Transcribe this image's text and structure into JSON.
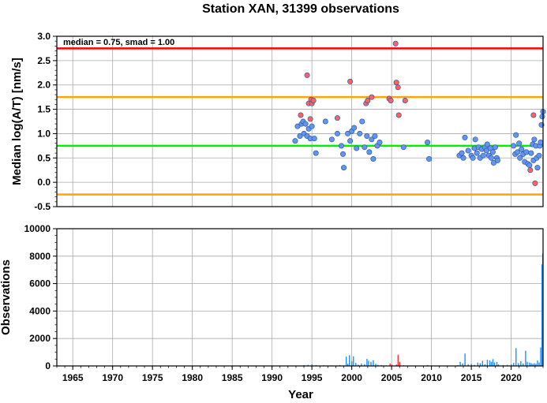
{
  "chart_data": [
    {
      "type": "scatter",
      "title": "Station XAN, 31399 observations",
      "ylabel": "Median log(A/T) [nm/s]",
      "annotation": "median = 0.75, smad = 1.00",
      "xlim": [
        1963,
        2024
      ],
      "ylim": [
        -0.5,
        3.0
      ],
      "yticks": [
        "-0.5",
        "0.0",
        "0.5",
        "1.0",
        "1.5",
        "2.0",
        "2.5",
        "3.0"
      ],
      "ref_lines": [
        {
          "y": 2.75,
          "color": "#ff0000"
        },
        {
          "y": 1.75,
          "color": "#ffa500"
        },
        {
          "y": 0.75,
          "color": "#00ee00"
        },
        {
          "y": -0.25,
          "color": "#ffa500"
        }
      ],
      "grid": true,
      "series": [
        {
          "color": "#6495ed",
          "points": [
            [
              1992.9,
              0.85
            ],
            [
              1993.2,
              1.15
            ],
            [
              1993.5,
              0.95
            ],
            [
              1993.7,
              1.2
            ],
            [
              1993.9,
              1.25
            ],
            [
              1994.0,
              1.0
            ],
            [
              1994.2,
              1.2
            ],
            [
              1994.4,
              0.95
            ],
            [
              1994.6,
              1.1
            ],
            [
              1994.8,
              0.9
            ],
            [
              1995.0,
              1.15
            ],
            [
              1995.3,
              0.9
            ],
            [
              1995.5,
              0.6
            ],
            [
              1996.7,
              1.25
            ],
            [
              1997.5,
              0.88
            ],
            [
              1998.2,
              1.0
            ],
            [
              1998.7,
              0.75
            ],
            [
              1998.9,
              0.58
            ],
            [
              1999.0,
              0.3
            ],
            [
              1999.5,
              1.0
            ],
            [
              1999.8,
              0.85
            ],
            [
              2000.0,
              1.05
            ],
            [
              2000.3,
              1.12
            ],
            [
              2000.6,
              0.7
            ],
            [
              2001.0,
              1.0
            ],
            [
              2001.3,
              1.25
            ],
            [
              2001.6,
              0.72
            ],
            [
              2001.9,
              0.95
            ],
            [
              2002.2,
              0.62
            ],
            [
              2002.5,
              0.88
            ],
            [
              2002.7,
              0.48
            ],
            [
              2002.9,
              0.95
            ],
            [
              2003.2,
              0.75
            ],
            [
              2003.5,
              0.82
            ],
            [
              2006.5,
              0.72
            ],
            [
              2009.5,
              0.82
            ],
            [
              2009.7,
              0.48
            ],
            [
              2013.5,
              0.55
            ],
            [
              2013.8,
              0.6
            ],
            [
              2014.0,
              0.5
            ],
            [
              2014.2,
              0.92
            ],
            [
              2014.6,
              0.65
            ],
            [
              2015.0,
              0.55
            ],
            [
              2015.2,
              0.5
            ],
            [
              2015.4,
              0.7
            ],
            [
              2015.5,
              0.88
            ],
            [
              2015.7,
              0.6
            ],
            [
              2015.9,
              0.72
            ],
            [
              2016.1,
              0.5
            ],
            [
              2016.3,
              0.68
            ],
            [
              2016.5,
              0.55
            ],
            [
              2016.7,
              0.72
            ],
            [
              2016.9,
              0.65
            ],
            [
              2017.0,
              0.78
            ],
            [
              2017.2,
              0.55
            ],
            [
              2017.4,
              0.7
            ],
            [
              2017.5,
              0.5
            ],
            [
              2017.7,
              0.62
            ],
            [
              2017.8,
              0.4
            ],
            [
              2018.0,
              0.72
            ],
            [
              2018.2,
              0.5
            ],
            [
              2018.3,
              0.45
            ],
            [
              2020.3,
              0.75
            ],
            [
              2020.5,
              0.58
            ],
            [
              2020.6,
              0.97
            ],
            [
              2020.8,
              0.62
            ],
            [
              2021.0,
              0.8
            ],
            [
              2021.1,
              0.5
            ],
            [
              2021.3,
              0.68
            ],
            [
              2021.5,
              0.58
            ],
            [
              2021.7,
              0.42
            ],
            [
              2021.9,
              0.62
            ],
            [
              2022.1,
              0.38
            ],
            [
              2022.3,
              0.35
            ],
            [
              2022.5,
              0.6
            ],
            [
              2022.7,
              0.78
            ],
            [
              2022.8,
              0.45
            ],
            [
              2022.9,
              0.88
            ],
            [
              2023.1,
              0.75
            ],
            [
              2023.2,
              0.5
            ],
            [
              2023.3,
              0.3
            ],
            [
              2023.5,
              0.55
            ],
            [
              2023.6,
              0.75
            ],
            [
              2023.7,
              0.82
            ],
            [
              2023.8,
              1.18
            ],
            [
              2023.9,
              1.35
            ],
            [
              2024.0,
              1.45
            ]
          ]
        },
        {
          "color": "#ff6060",
          "points": [
            [
              1993.6,
              1.38
            ],
            [
              1994.4,
              2.2
            ],
            [
              1994.6,
              1.62
            ],
            [
              1994.8,
              1.3
            ],
            [
              1994.9,
              1.7
            ],
            [
              1995.0,
              1.62
            ],
            [
              1995.2,
              1.68
            ],
            [
              1998.2,
              1.32
            ],
            [
              1999.8,
              2.07
            ],
            [
              2001.8,
              1.62
            ],
            [
              2002.0,
              1.68
            ],
            [
              2002.5,
              1.75
            ],
            [
              2004.7,
              1.72
            ],
            [
              2004.9,
              1.68
            ],
            [
              2005.5,
              2.85
            ],
            [
              2005.6,
              2.05
            ],
            [
              2005.8,
              1.95
            ],
            [
              2005.9,
              1.38
            ],
            [
              2006.7,
              1.68
            ],
            [
              2022.4,
              0.25
            ],
            [
              2022.8,
              1.38
            ],
            [
              2023.0,
              -0.02
            ]
          ]
        }
      ]
    },
    {
      "type": "bar",
      "xlabel": "Year",
      "ylabel": "Observations",
      "xlim": [
        1963,
        2024
      ],
      "ylim": [
        0,
        10000
      ],
      "yticks": [
        "0",
        "2000",
        "4000",
        "6000",
        "8000",
        "10000"
      ],
      "xticks": [
        "1965",
        "1970",
        "1975",
        "1980",
        "1985",
        "1990",
        "1995",
        "2000",
        "2005",
        "2010",
        "2015",
        "2020"
      ],
      "grid": true,
      "series": [
        {
          "color": "#1e90ff",
          "bars": [
            [
              1993.0,
              30
            ],
            [
              1994.0,
              60
            ],
            [
              1994.5,
              80
            ],
            [
              1995.0,
              120
            ],
            [
              1995.5,
              60
            ],
            [
              1996.5,
              50
            ],
            [
              1997.5,
              40
            ],
            [
              1998.5,
              60
            ],
            [
              1999.0,
              40
            ],
            [
              1999.3,
              680
            ],
            [
              1999.5,
              150
            ],
            [
              1999.7,
              780
            ],
            [
              2000.0,
              350
            ],
            [
              2000.2,
              700
            ],
            [
              2000.5,
              220
            ],
            [
              2000.8,
              90
            ],
            [
              2001.2,
              180
            ],
            [
              2001.6,
              130
            ],
            [
              2001.9,
              520
            ],
            [
              2002.1,
              380
            ],
            [
              2002.4,
              300
            ],
            [
              2002.7,
              420
            ],
            [
              2003.0,
              150
            ],
            [
              2003.3,
              80
            ],
            [
              2003.7,
              60
            ],
            [
              2004.3,
              40
            ],
            [
              2006.5,
              50
            ],
            [
              2007.0,
              30
            ],
            [
              2009.5,
              60
            ],
            [
              2010.0,
              40
            ],
            [
              2013.3,
              60
            ],
            [
              2013.6,
              300
            ],
            [
              2013.9,
              180
            ],
            [
              2014.2,
              900
            ],
            [
              2014.6,
              120
            ],
            [
              2015.0,
              150
            ],
            [
              2015.4,
              80
            ],
            [
              2015.8,
              250
            ],
            [
              2016.1,
              200
            ],
            [
              2016.4,
              380
            ],
            [
              2016.7,
              130
            ],
            [
              2017.0,
              450
            ],
            [
              2017.3,
              400
            ],
            [
              2017.5,
              300
            ],
            [
              2017.7,
              500
            ],
            [
              2017.9,
              250
            ],
            [
              2018.2,
              300
            ],
            [
              2018.4,
              120
            ],
            [
              2019.0,
              60
            ],
            [
              2019.5,
              80
            ],
            [
              2020.0,
              120
            ],
            [
              2020.3,
              220
            ],
            [
              2020.6,
              1300
            ],
            [
              2020.9,
              200
            ],
            [
              2021.2,
              350
            ],
            [
              2021.5,
              180
            ],
            [
              2021.8,
              1100
            ],
            [
              2022.0,
              300
            ],
            [
              2022.3,
              250
            ],
            [
              2022.5,
              200
            ],
            [
              2022.7,
              150
            ],
            [
              2022.9,
              200
            ],
            [
              2023.1,
              150
            ],
            [
              2023.3,
              400
            ],
            [
              2023.5,
              250
            ],
            [
              2023.7,
              1350
            ],
            [
              2023.85,
              7400
            ],
            [
              2023.95,
              8200
            ]
          ]
        },
        {
          "color": "#ff3030",
          "bars": [
            [
              2004.8,
              180
            ],
            [
              2005.0,
              90
            ],
            [
              2005.6,
              100
            ],
            [
              2005.8,
              820
            ],
            [
              2006.0,
              300
            ]
          ]
        }
      ]
    }
  ]
}
